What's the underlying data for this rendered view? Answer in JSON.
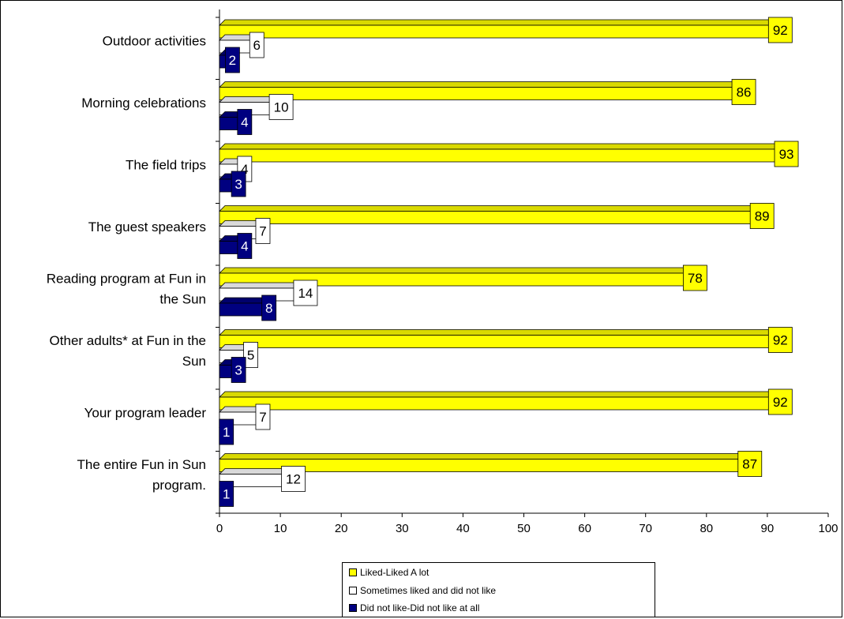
{
  "chart_data": {
    "type": "bar",
    "orientation": "horizontal",
    "categories": [
      [
        "Outdoor activities"
      ],
      [
        "Morning celebrations"
      ],
      [
        "The field trips"
      ],
      [
        "The guest speakers"
      ],
      [
        "Reading program at Fun in",
        "the Sun"
      ],
      [
        "Other adults* at Fun in the",
        "Sun"
      ],
      [
        "Your program leader"
      ],
      [
        "The entire Fun in Sun",
        "program."
      ]
    ],
    "series": [
      {
        "name": "Liked-Liked A lot",
        "color": "#ffff00",
        "values": [
          92,
          86,
          93,
          89,
          78,
          92,
          92,
          87
        ]
      },
      {
        "name": "Sometimes liked and did not like",
        "color": "#ffffff",
        "values": [
          6,
          10,
          4,
          7,
          14,
          5,
          7,
          12
        ]
      },
      {
        "name": "Did not like-Did not like at all",
        "color": "#000080",
        "values": [
          2,
          4,
          3,
          4,
          8,
          3,
          1,
          1
        ]
      }
    ],
    "xlim": [
      0,
      100
    ],
    "xticks": [
      0,
      10,
      20,
      30,
      40,
      50,
      60,
      70,
      80,
      90,
      100
    ],
    "grid": false,
    "legend_position": "bottom"
  }
}
